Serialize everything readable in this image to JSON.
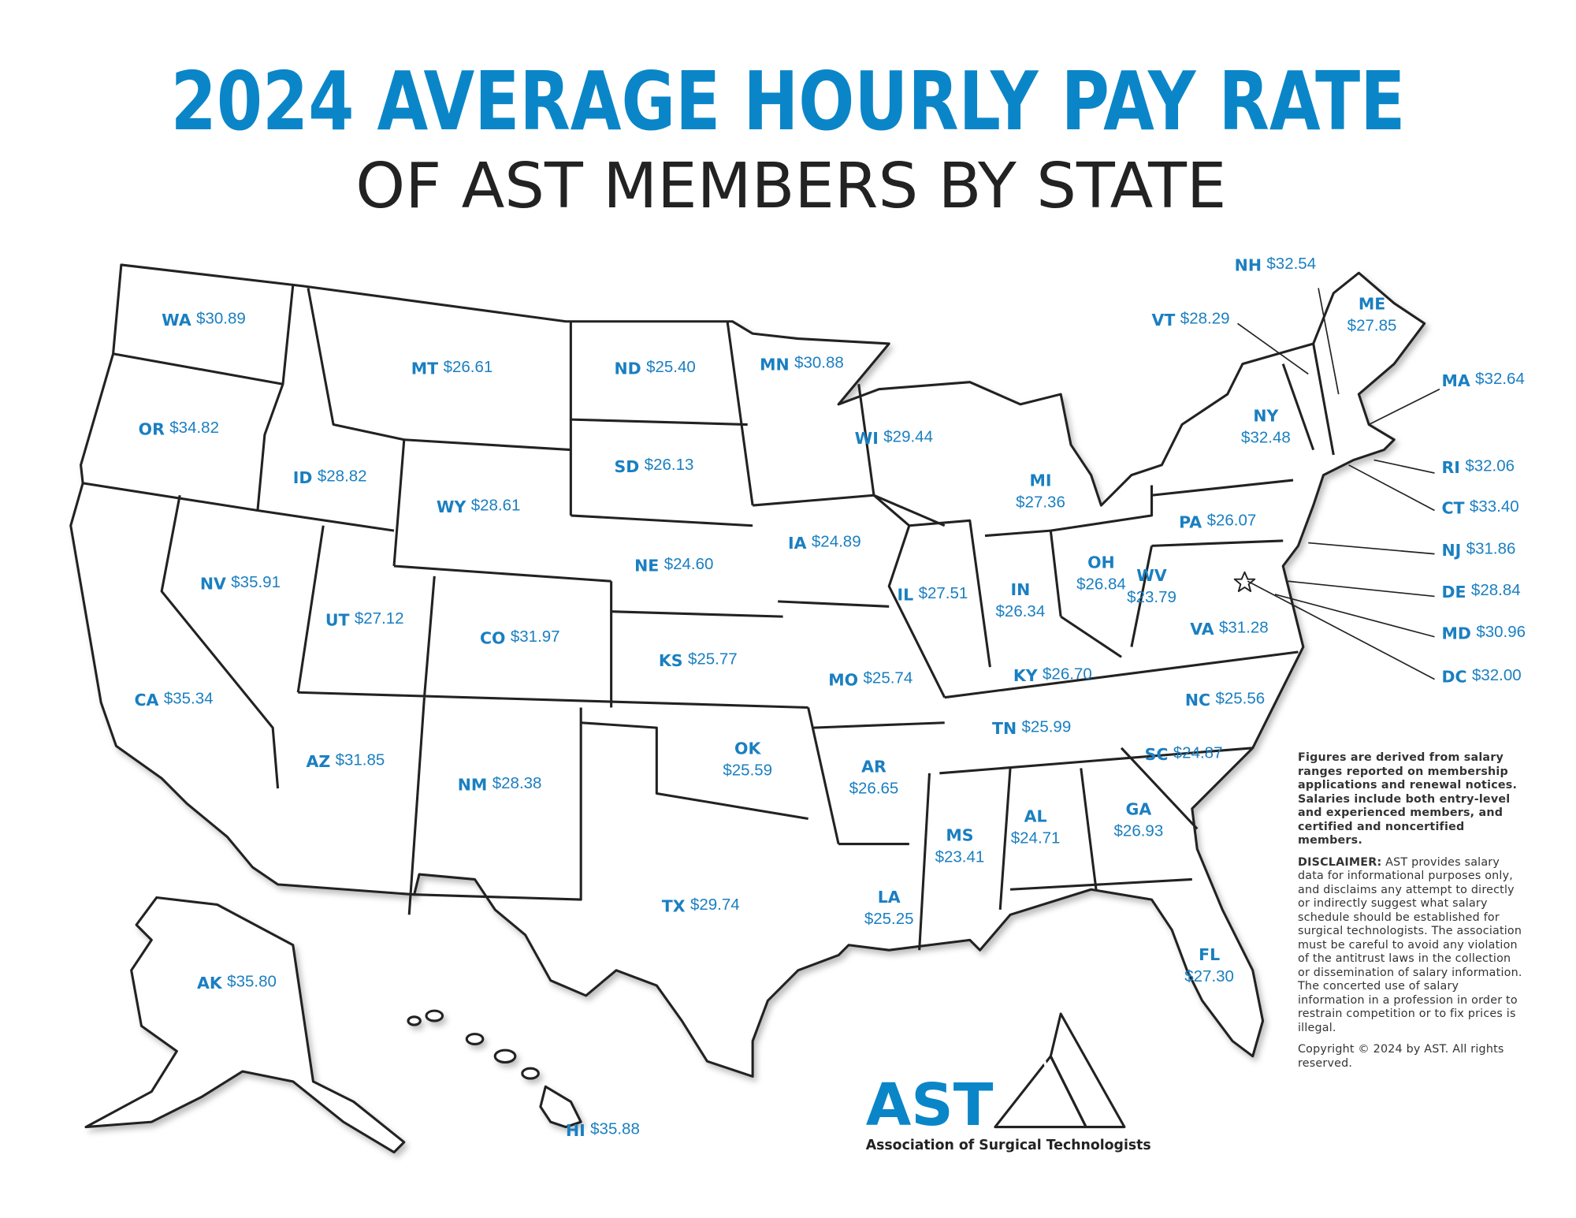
{
  "header": {
    "title": "2024 AVERAGE HOURLY PAY RATE",
    "subtitle": "OF AST MEMBERS BY STATE"
  },
  "states": [
    {
      "abbr": "WA",
      "value": "$30.89"
    },
    {
      "abbr": "OR",
      "value": "$34.82"
    },
    {
      "abbr": "CA",
      "value": "$35.34"
    },
    {
      "abbr": "NV",
      "value": "$35.91"
    },
    {
      "abbr": "ID",
      "value": "$28.82"
    },
    {
      "abbr": "MT",
      "value": "$26.61"
    },
    {
      "abbr": "WY",
      "value": "$28.61"
    },
    {
      "abbr": "UT",
      "value": "$27.12"
    },
    {
      "abbr": "CO",
      "value": "$31.97"
    },
    {
      "abbr": "AZ",
      "value": "$31.85"
    },
    {
      "abbr": "NM",
      "value": "$28.38"
    },
    {
      "abbr": "ND",
      "value": "$25.40"
    },
    {
      "abbr": "SD",
      "value": "$26.13"
    },
    {
      "abbr": "NE",
      "value": "$24.60"
    },
    {
      "abbr": "KS",
      "value": "$25.77"
    },
    {
      "abbr": "OK",
      "value": "$25.59"
    },
    {
      "abbr": "TX",
      "value": "$29.74"
    },
    {
      "abbr": "MN",
      "value": "$30.88"
    },
    {
      "abbr": "IA",
      "value": "$24.89"
    },
    {
      "abbr": "MO",
      "value": "$25.74"
    },
    {
      "abbr": "AR",
      "value": "$26.65"
    },
    {
      "abbr": "LA",
      "value": "$25.25"
    },
    {
      "abbr": "WI",
      "value": "$29.44"
    },
    {
      "abbr": "IL",
      "value": "$27.51"
    },
    {
      "abbr": "MI",
      "value": "$27.36"
    },
    {
      "abbr": "IN",
      "value": "$26.34"
    },
    {
      "abbr": "OH",
      "value": "$26.84"
    },
    {
      "abbr": "KY",
      "value": "$26.70"
    },
    {
      "abbr": "TN",
      "value": "$25.99"
    },
    {
      "abbr": "MS",
      "value": "$23.41"
    },
    {
      "abbr": "AL",
      "value": "$24.71"
    },
    {
      "abbr": "GA",
      "value": "$26.93"
    },
    {
      "abbr": "FL",
      "value": "$27.30"
    },
    {
      "abbr": "SC",
      "value": "$24.87"
    },
    {
      "abbr": "NC",
      "value": "$25.56"
    },
    {
      "abbr": "VA",
      "value": "$31.28"
    },
    {
      "abbr": "WV",
      "value": "$23.79"
    },
    {
      "abbr": "PA",
      "value": "$26.07"
    },
    {
      "abbr": "NY",
      "value": "$32.48"
    },
    {
      "abbr": "VT",
      "value": "$28.29"
    },
    {
      "abbr": "NH",
      "value": "$32.54"
    },
    {
      "abbr": "ME",
      "value": "$27.85"
    },
    {
      "abbr": "MA",
      "value": "$32.64"
    },
    {
      "abbr": "RI",
      "value": "$32.06"
    },
    {
      "abbr": "CT",
      "value": "$33.40"
    },
    {
      "abbr": "NJ",
      "value": "$31.86"
    },
    {
      "abbr": "DE",
      "value": "$28.84"
    },
    {
      "abbr": "MD",
      "value": "$30.96"
    },
    {
      "abbr": "DC",
      "value": "$32.00"
    },
    {
      "abbr": "AK",
      "value": "$35.80"
    },
    {
      "abbr": "HI",
      "value": "$35.88"
    }
  ],
  "notes": {
    "figures": "Figures are derived from salary ranges reported on membership applications and renewal notices. Salaries include both entry-level and experienced members, and certified and noncertified members.",
    "disclaimer_label": "DISCLAIMER:",
    "disclaimer": "AST provides salary data for informational purposes only, and disclaims any attempt to directly or indirectly suggest what salary schedule should be established for surgical technologists. The association must be careful to avoid any violation of the antitrust laws in the collection or dissemination of salary information. The concerted use of salary information in a profession in order to restrain competition or to fix prices is illegal.",
    "copyright": "Copyright © 2024 by AST. All rights reserved."
  },
  "logo": {
    "name": "AST",
    "full_name": "Association of Surgical Technologists"
  }
}
